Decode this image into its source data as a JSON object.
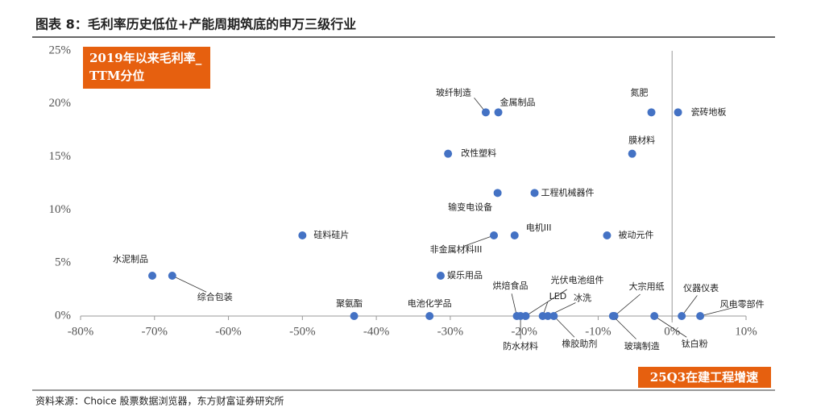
{
  "chart_data": {
    "type": "scatter",
    "title": "图表 8：毛利率历史低位+产能周期筑底的申万三级行业",
    "y_annotation": "2019年以来毛利率_TTM分位",
    "x_annotation": "25Q3在建工程增速",
    "source": "资料来源：Choice 股票数据浏览器，东方财富证券研究所",
    "color": "#4472c4",
    "xlim": [
      -80,
      10
    ],
    "ylim": [
      0,
      25
    ],
    "xticks": [
      {
        "value": -80,
        "label": "-80%"
      },
      {
        "value": -70,
        "label": "-70%"
      },
      {
        "value": -60,
        "label": "-60%"
      },
      {
        "value": -50,
        "label": "-50%"
      },
      {
        "value": -40,
        "label": "-40%"
      },
      {
        "value": -30,
        "label": "-30%"
      },
      {
        "value": -20,
        "label": "-20%"
      },
      {
        "value": -10,
        "label": "-10%"
      },
      {
        "value": 0,
        "label": "0%"
      },
      {
        "value": 10,
        "label": "10%"
      }
    ],
    "yticks": [
      {
        "value": 0,
        "label": "0%"
      },
      {
        "value": 5,
        "label": "5%"
      },
      {
        "value": 10,
        "label": "10%"
      },
      {
        "value": 15,
        "label": "15%"
      },
      {
        "value": 20,
        "label": "20%"
      },
      {
        "value": 25,
        "label": "25%"
      }
    ],
    "labels": [
      "水泥制品",
      "综合包装",
      "硅料硅片",
      "聚氨酯",
      "电池化学品",
      "娱乐用品",
      "改性塑料",
      "玻纤制造",
      "金属制品",
      "输变电设备",
      "非金属材料III",
      "电机III",
      "工程机械器件",
      "烘焙食品",
      "防水材料",
      "光伏电池组件",
      "LED",
      "冰洗",
      "橡胶助剂",
      "大宗用纸",
      "玻璃制造",
      "钛白粉",
      "仪器仪表",
      "风电零部件",
      "被动元件",
      "膜材料",
      "氮肥",
      "瓷砖地板"
    ],
    "x": [
      -70.3,
      -67.6,
      -50.0,
      -43.0,
      -32.8,
      -31.3,
      -30.3,
      -25.2,
      -23.5,
      -23.6,
      -24.1,
      -21.3,
      -18.6,
      -21.0,
      -20.5,
      -19.8,
      -17.5,
      -16.8,
      -16.0,
      -7.8,
      -8.0,
      -2.4,
      1.3,
      3.8,
      -8.8,
      -5.4,
      -2.8,
      0.8
    ],
    "y": [
      3.8,
      3.8,
      7.6,
      0,
      0,
      3.8,
      15.3,
      19.2,
      19.2,
      11.6,
      7.6,
      7.6,
      11.6,
      0,
      0,
      0,
      0,
      0,
      0,
      0,
      0,
      0,
      0,
      0,
      7.6,
      15.3,
      19.2,
      19.2
    ]
  }
}
